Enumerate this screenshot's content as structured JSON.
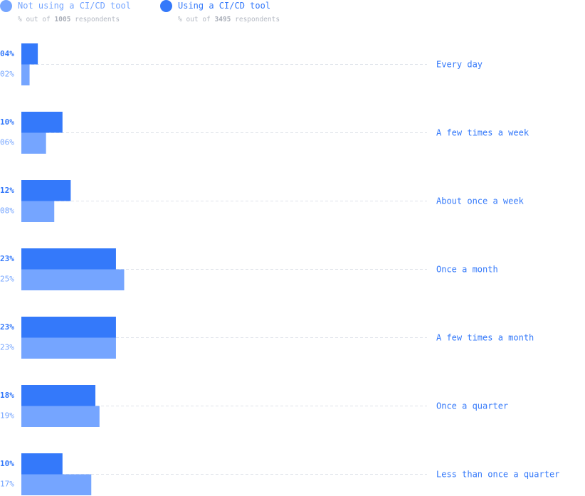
{
  "colors": {
    "not_using": "#75a5ff",
    "using": "#3479fa",
    "label": "#3479fa",
    "gridline": "#dfe3ea"
  },
  "legend": {
    "not_using": {
      "label": "Not using a CI/CD tool",
      "sub_prefix": "% out of",
      "sub_count": "1005",
      "sub_suffix": "respondents"
    },
    "using": {
      "label": "Using a CI/CD tool",
      "sub_prefix": "% out of",
      "sub_count": "3495",
      "sub_suffix": "respondents"
    }
  },
  "chart_data": {
    "type": "bar",
    "orientation": "horizontal",
    "categories": [
      "Every day",
      "A few times a week",
      "About once a week",
      "Once a month",
      "A few times a month",
      "Once a quarter",
      "Less than once a quarter"
    ],
    "series": [
      {
        "name": "Using a CI/CD tool",
        "values": [
          4,
          10,
          12,
          23,
          23,
          18,
          10
        ],
        "labels": [
          "04%",
          "10%",
          "12%",
          "23%",
          "23%",
          "18%",
          "10%"
        ]
      },
      {
        "name": "Not using a CI/CD tool",
        "values": [
          2,
          6,
          8,
          25,
          23,
          19,
          17
        ],
        "labels": [
          "02%",
          "06%",
          "08%",
          "25%",
          "23%",
          "19%",
          "17%"
        ]
      }
    ],
    "unit": "%",
    "legend_position": "top-left"
  }
}
